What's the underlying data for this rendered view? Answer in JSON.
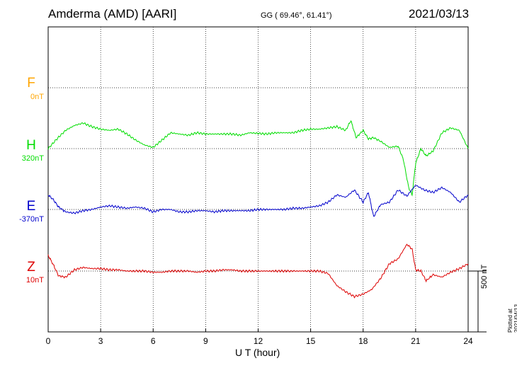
{
  "header": {
    "title": "Amderma (AMD)  [AARI]",
    "coords": "GG ( 69.46°,  61.41°)",
    "date": "2021/03/13"
  },
  "footer": {
    "plotted": "Plotted at 2021/04/13 01:32 UT"
  },
  "chart_data": {
    "type": "line",
    "title": "Amderma (AMD)  [AARI]",
    "xlabel": "U T (hour)",
    "xlim": [
      0,
      24
    ],
    "xticks": [
      0,
      3,
      6,
      9,
      12,
      15,
      18,
      21,
      24
    ],
    "grid": true,
    "scale_bar": "500 nT",
    "series": [
      {
        "name": "F",
        "baseline": "0nT",
        "color": "#ffa500",
        "x": [],
        "y": []
      },
      {
        "name": "H",
        "baseline": "320nT",
        "color": "#00dd00",
        "x": [
          0,
          0.5,
          1,
          1.5,
          2,
          2.5,
          3,
          3.5,
          4,
          4.5,
          5,
          5.5,
          6,
          6.5,
          7,
          7.5,
          8,
          8.5,
          9,
          9.5,
          10,
          10.5,
          11,
          11.5,
          12,
          12.5,
          13,
          13.5,
          14,
          14.5,
          15,
          15.5,
          16,
          16.5,
          17,
          17.3,
          17.6,
          18,
          18.3,
          18.6,
          19,
          19.5,
          20,
          20.3,
          20.6,
          20.8,
          21,
          21.3,
          21.6,
          22,
          22.5,
          23,
          23.5,
          24
        ],
        "y": [
          0,
          80,
          150,
          190,
          210,
          180,
          160,
          150,
          160,
          120,
          70,
          30,
          10,
          70,
          130,
          120,
          110,
          130,
          120,
          120,
          120,
          120,
          110,
          130,
          125,
          120,
          130,
          130,
          130,
          150,
          160,
          160,
          170,
          180,
          150,
          230,
          90,
          150,
          80,
          90,
          60,
          10,
          20,
          -90,
          -320,
          -380,
          -120,
          0,
          -60,
          -20,
          130,
          170,
          150,
          0
        ]
      },
      {
        "name": "E",
        "baseline": "-370nT",
        "color": "#0000cc",
        "x": [
          0,
          0.3,
          0.6,
          1,
          1.5,
          2,
          2.5,
          3,
          3.5,
          4,
          4.5,
          5,
          5.5,
          6,
          6.5,
          7,
          7.5,
          8,
          8.5,
          9,
          9.5,
          10,
          10.5,
          11,
          11.5,
          12,
          12.5,
          13,
          13.5,
          14,
          14.5,
          15,
          15.5,
          16,
          16.5,
          17,
          17.5,
          18,
          18.3,
          18.6,
          19,
          19.5,
          20,
          20.5,
          21,
          21.5,
          22,
          22.5,
          23,
          23.5,
          24
        ],
        "y": [
          120,
          80,
          20,
          -20,
          -30,
          -10,
          0,
          20,
          30,
          20,
          10,
          20,
          10,
          -20,
          0,
          0,
          -20,
          -20,
          -10,
          -10,
          -20,
          -10,
          -10,
          -10,
          -10,
          0,
          0,
          0,
          0,
          10,
          10,
          20,
          30,
          60,
          120,
          100,
          160,
          60,
          140,
          -60,
          40,
          60,
          160,
          110,
          200,
          160,
          140,
          180,
          140,
          60,
          120
        ]
      },
      {
        "name": "Z",
        "baseline": "10nT",
        "color": "#dd0000",
        "x": [
          0,
          0.3,
          0.6,
          1,
          1.5,
          2,
          2.5,
          3,
          3.5,
          4,
          4.5,
          5,
          5.5,
          6,
          6.5,
          7,
          7.5,
          8,
          8.5,
          9,
          9.5,
          10,
          10.5,
          11,
          11.5,
          12,
          12.5,
          13,
          13.5,
          14,
          14.5,
          15,
          15.5,
          16,
          16.5,
          17,
          17.5,
          18,
          18.5,
          19,
          19.5,
          20,
          20.5,
          20.8,
          21,
          21.3,
          21.6,
          22,
          22.5,
          23,
          23.5,
          24
        ],
        "y": [
          130,
          50,
          -40,
          -50,
          10,
          30,
          20,
          20,
          10,
          10,
          0,
          0,
          0,
          -10,
          -10,
          0,
          0,
          0,
          -10,
          0,
          0,
          10,
          10,
          0,
          0,
          0,
          0,
          0,
          0,
          0,
          0,
          0,
          0,
          -20,
          -120,
          -170,
          -210,
          -190,
          -150,
          -60,
          60,
          100,
          220,
          180,
          10,
          0,
          -80,
          -30,
          -50,
          -10,
          20,
          60
        ]
      }
    ]
  }
}
